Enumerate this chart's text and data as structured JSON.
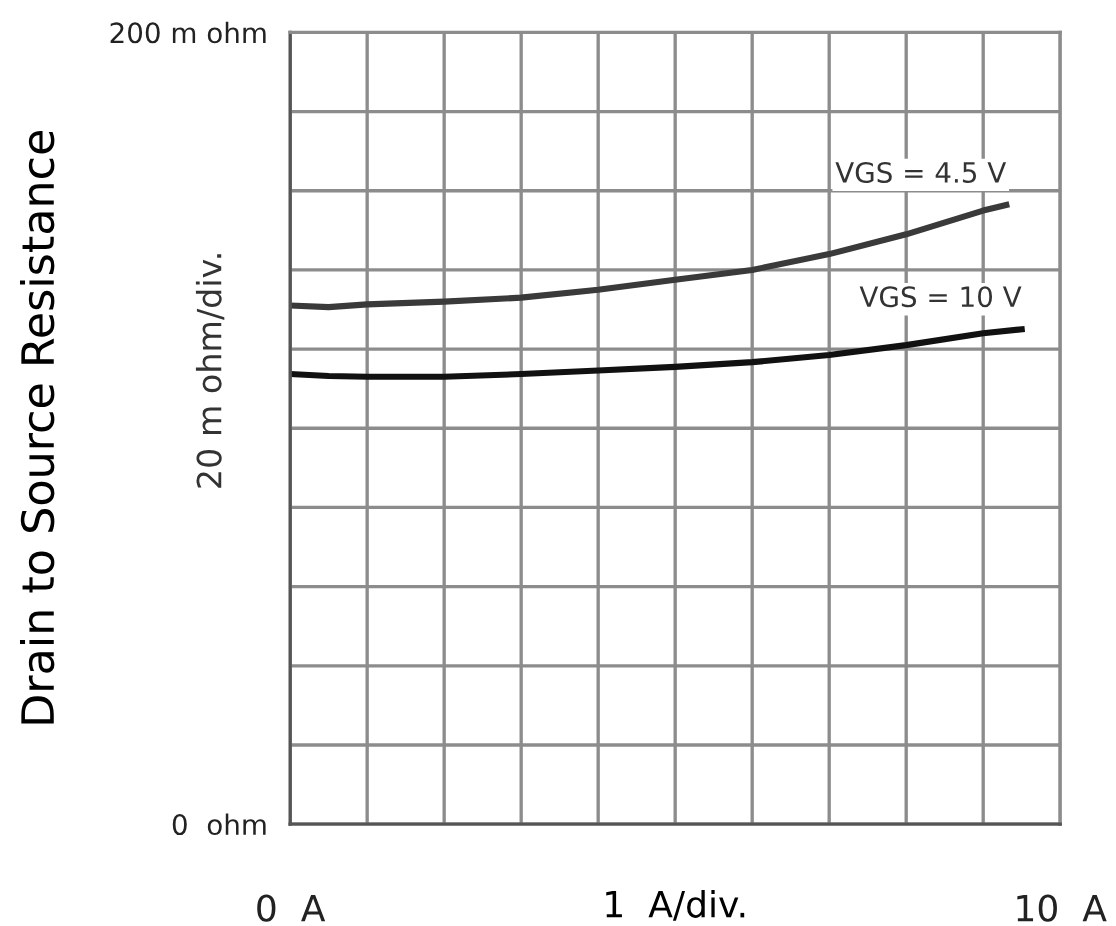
{
  "chart_data": {
    "type": "line",
    "xlabel": "1  A/div.",
    "ylabel": "Drain to Source Resistance",
    "annotations": [
      "20 m ohm/div."
    ],
    "xlim": [
      0,
      10
    ],
    "ylim": [
      0,
      200
    ],
    "xticks": [
      {
        "value": 0,
        "label": "0  A"
      },
      {
        "value": 1,
        "label": null
      },
      {
        "value": 2,
        "label": null
      },
      {
        "value": 3,
        "label": null
      },
      {
        "value": 4,
        "label": null
      },
      {
        "value": 5,
        "label": null
      },
      {
        "value": 6,
        "label": null
      },
      {
        "value": 7,
        "label": null
      },
      {
        "value": 8,
        "label": null
      },
      {
        "value": 9,
        "label": null
      },
      {
        "value": 10,
        "label": "10  A"
      }
    ],
    "yticks": [
      {
        "value": 0,
        "label": "0  ohm"
      },
      {
        "value": 20,
        "label": null
      },
      {
        "value": 40,
        "label": null
      },
      {
        "value": 60,
        "label": null
      },
      {
        "value": 80,
        "label": null
      },
      {
        "value": 100,
        "label": null
      },
      {
        "value": 120,
        "label": null
      },
      {
        "value": 140,
        "label": null
      },
      {
        "value": 160,
        "label": null
      },
      {
        "value": 180,
        "label": null
      },
      {
        "value": 200,
        "label": "200 m ohm"
      }
    ],
    "grid": true,
    "legend": false,
    "marker": "none",
    "line_style": "solid",
    "series": [
      {
        "name": "VGS = 4.5 V",
        "color": "#3a3a3a",
        "x": [
          0,
          0.5,
          1,
          2,
          3,
          4,
          5,
          6,
          7,
          8,
          9,
          9.3
        ],
        "values": [
          131,
          130.6,
          131.3,
          132,
          133,
          135,
          137.5,
          140,
          144,
          149,
          155,
          156.4
        ]
      },
      {
        "name": "VGS = 10 V",
        "color": "#111111",
        "x": [
          0,
          0.5,
          1,
          2,
          3,
          4,
          5,
          6,
          7,
          8,
          9,
          9.5
        ],
        "values": [
          113.7,
          113.2,
          113,
          113,
          113.7,
          114.6,
          115.5,
          116.7,
          118.5,
          121,
          124,
          125
        ]
      }
    ]
  }
}
